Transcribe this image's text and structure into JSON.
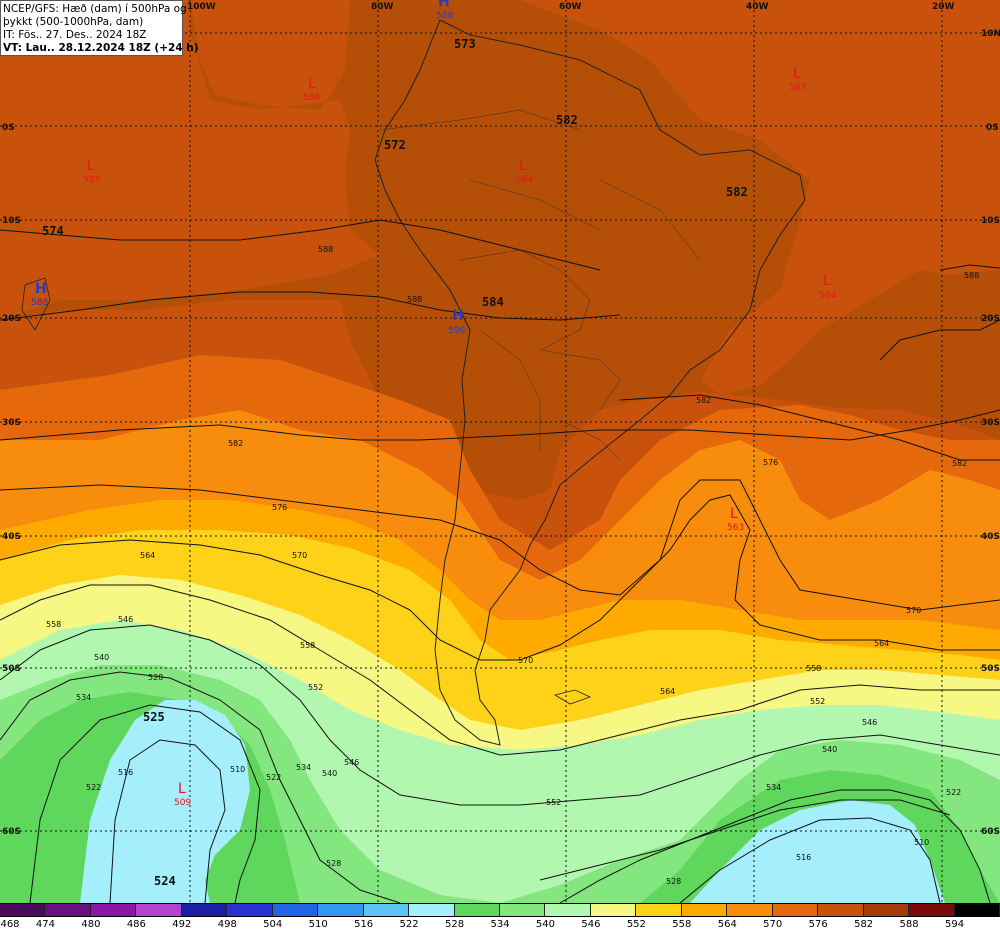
{
  "header": {
    "line1": "NCEP/GFS: Hæð (dam) í 500hPa og",
    "line2": "þykkt (500-1000hPa, dam)",
    "line3": "IT: Fös.. 27. Des.. 2024 18Z",
    "line4": "VT: Lau.. 28.12.2024 18Z (+24 h)"
  },
  "longitude_labels": [
    "100W",
    "80W",
    "60W",
    "40W",
    "20W"
  ],
  "latitude_labels": [
    "10N",
    "0S",
    "10S",
    "20S",
    "30S",
    "40S",
    "50S",
    "60S"
  ],
  "height_contour_labels": [
    "573",
    "582",
    "572",
    "582",
    "574",
    "584",
    "525",
    "524"
  ],
  "thickness_contour_labels": [
    "588",
    "588",
    "588",
    "582",
    "582",
    "582",
    "576",
    "576",
    "570",
    "570",
    "570",
    "564",
    "564",
    "564",
    "558",
    "558",
    "558",
    "552",
    "552",
    "552",
    "546",
    "546",
    "546",
    "540",
    "540",
    "540",
    "534",
    "534",
    "534",
    "528",
    "528",
    "528",
    "522",
    "522",
    "522",
    "516",
    "516",
    "510",
    "510"
  ],
  "pressure_centers": [
    {
      "type": "L",
      "value": "586"
    },
    {
      "type": "L",
      "value": "585"
    },
    {
      "type": "L",
      "value": "584"
    },
    {
      "type": "L",
      "value": "584"
    },
    {
      "type": "L",
      "value": "587"
    },
    {
      "type": "L",
      "value": "563"
    },
    {
      "type": "L",
      "value": "509"
    },
    {
      "type": "H",
      "value": "588"
    },
    {
      "type": "H",
      "value": "590"
    },
    {
      "type": "H",
      "value": "588"
    }
  ],
  "legend": {
    "values": [
      "468",
      "474",
      "480",
      "486",
      "492",
      "498",
      "504",
      "510",
      "516",
      "522",
      "528",
      "534",
      "540",
      "546",
      "552",
      "558",
      "564",
      "570",
      "576",
      "582",
      "588",
      "594"
    ],
    "colors": [
      "#4b0a5e",
      "#6a0f80",
      "#8c17a6",
      "#b444cf",
      "#1a1fa3",
      "#2a31d1",
      "#2364e6",
      "#3399f0",
      "#5ec3f5",
      "#a5eefc",
      "#5fd65c",
      "#83e67e",
      "#b2f7b0",
      "#f7f783",
      "#ffd21a",
      "#ffaa00",
      "#f88c0c",
      "#e5690c",
      "#c8520c",
      "#a53b08",
      "#7a0a0a",
      "#000000"
    ]
  }
}
